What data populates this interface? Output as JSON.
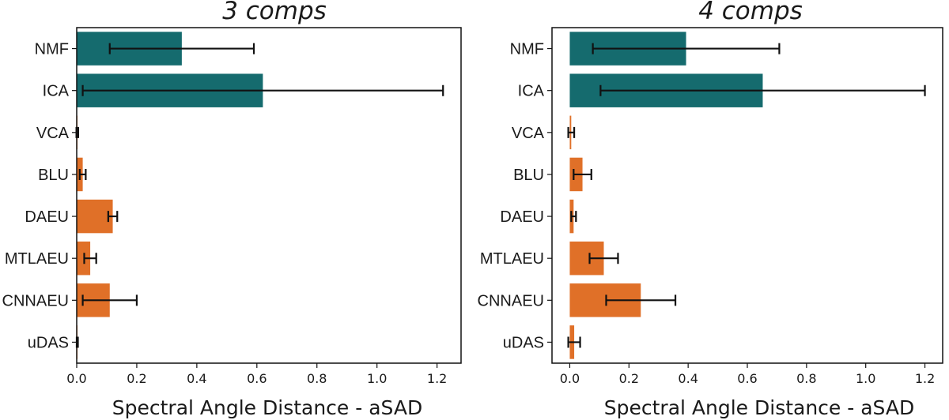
{
  "colors": {
    "baseline": "#156b6e",
    "autoencoder": "#e07028"
  },
  "chart_data": [
    {
      "type": "bar",
      "orientation": "horizontal",
      "title": "3 comps",
      "xlabel": "Spectral Angle Distance - aSAD",
      "ylabel": "",
      "xlim": [
        0,
        1.28
      ],
      "xticks": [
        0.0,
        0.2,
        0.4,
        0.6,
        0.8,
        1.0,
        1.2
      ],
      "xtick_labels": [
        "0.0",
        "0.2",
        "0.4",
        "0.6",
        "0.8",
        "1.0",
        "1.2"
      ],
      "categories": [
        "NMF",
        "ICA",
        "VCA",
        "BLU",
        "DAEU",
        "MTLAEU",
        "CNNAEU",
        "uDAS"
      ],
      "values": [
        0.35,
        0.62,
        0.002,
        0.02,
        0.12,
        0.045,
        0.11,
        0.002
      ],
      "errors": [
        0.24,
        0.6,
        0.003,
        0.01,
        0.015,
        0.02,
        0.09,
        0.002
      ],
      "groups": [
        "baseline",
        "baseline",
        "autoencoder",
        "autoencoder",
        "autoencoder",
        "autoencoder",
        "autoencoder",
        "autoencoder"
      ]
    },
    {
      "type": "bar",
      "orientation": "horizontal",
      "title": "4 comps",
      "xlabel": "Spectral Angle Distance - aSAD",
      "ylabel": "",
      "xlim": [
        -0.06,
        1.26
      ],
      "xticks": [
        0.0,
        0.2,
        0.4,
        0.6,
        0.8,
        1.0,
        1.2
      ],
      "xtick_labels": [
        "0.0",
        "0.2",
        "0.4",
        "0.6",
        "0.8",
        "1.0",
        "1.2"
      ],
      "categories": [
        "NMF",
        "ICA",
        "VCA",
        "BLU",
        "DAEU",
        "MTLAEU",
        "CNNAEU",
        "uDAS"
      ],
      "values": [
        0.393,
        0.652,
        0.005,
        0.043,
        0.013,
        0.115,
        0.24,
        0.015
      ],
      "errors": [
        0.315,
        0.548,
        0.01,
        0.03,
        0.008,
        0.048,
        0.117,
        0.02
      ],
      "groups": [
        "baseline",
        "baseline",
        "autoencoder",
        "autoencoder",
        "autoencoder",
        "autoencoder",
        "autoencoder",
        "autoencoder"
      ]
    }
  ]
}
